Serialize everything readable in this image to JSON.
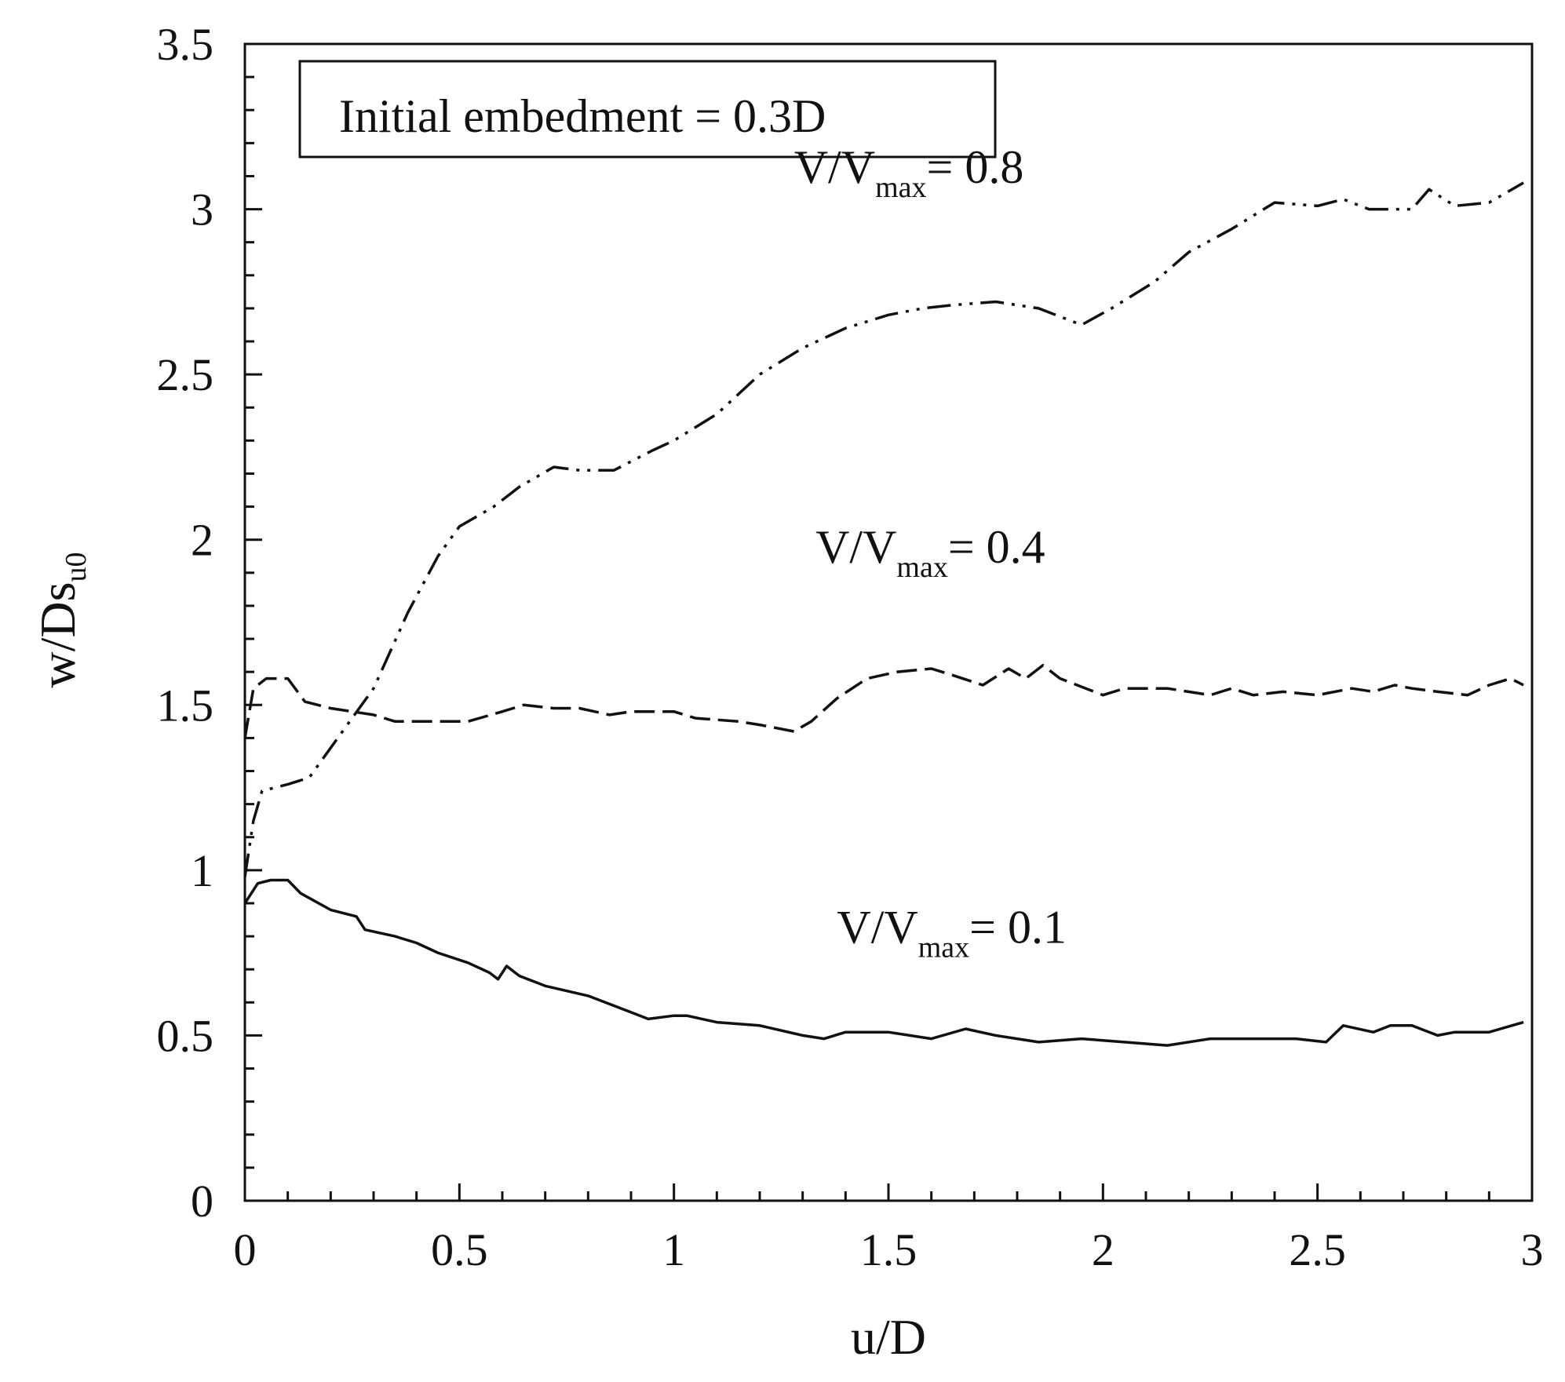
{
  "chart_data": {
    "type": "line",
    "title": "",
    "xlabel": "u/D",
    "ylabel_main": "w/Ds",
    "ylabel_sub": "u0",
    "xlim": [
      0,
      3
    ],
    "ylim": [
      0,
      3.5
    ],
    "x_ticks": [
      0,
      0.5,
      1,
      1.5,
      2,
      2.5,
      3
    ],
    "x_tick_labels": [
      "0",
      "0.5",
      "1",
      "1.5",
      "2",
      "2.5",
      "3"
    ],
    "y_ticks": [
      0,
      0.5,
      1,
      1.5,
      2,
      2.5,
      3,
      3.5
    ],
    "y_tick_labels": [
      "0",
      "0.5",
      "1",
      "1.5",
      "2",
      "2.5",
      "3",
      "3.5"
    ],
    "grid": false,
    "legend_box": "Initial embedment  = 0.3D",
    "series": [
      {
        "name": "V/Vmax = 0.1",
        "label_main": "V/V",
        "label_sub": "max",
        "label_value": "= 0.1",
        "label_at": [
          1.38,
          0.78
        ],
        "dash": "solid",
        "points": [
          [
            0,
            0.9
          ],
          [
            0.03,
            0.96
          ],
          [
            0.06,
            0.97
          ],
          [
            0.1,
            0.97
          ],
          [
            0.13,
            0.93
          ],
          [
            0.2,
            0.88
          ],
          [
            0.26,
            0.86
          ],
          [
            0.28,
            0.82
          ],
          [
            0.35,
            0.8
          ],
          [
            0.4,
            0.78
          ],
          [
            0.45,
            0.75
          ],
          [
            0.52,
            0.72
          ],
          [
            0.57,
            0.69
          ],
          [
            0.59,
            0.67
          ],
          [
            0.61,
            0.71
          ],
          [
            0.64,
            0.68
          ],
          [
            0.7,
            0.65
          ],
          [
            0.8,
            0.62
          ],
          [
            0.9,
            0.57
          ],
          [
            0.94,
            0.55
          ],
          [
            1.0,
            0.56
          ],
          [
            1.03,
            0.56
          ],
          [
            1.1,
            0.54
          ],
          [
            1.2,
            0.53
          ],
          [
            1.3,
            0.5
          ],
          [
            1.35,
            0.49
          ],
          [
            1.4,
            0.51
          ],
          [
            1.5,
            0.51
          ],
          [
            1.6,
            0.49
          ],
          [
            1.68,
            0.52
          ],
          [
            1.75,
            0.5
          ],
          [
            1.85,
            0.48
          ],
          [
            1.95,
            0.49
          ],
          [
            2.05,
            0.48
          ],
          [
            2.15,
            0.47
          ],
          [
            2.25,
            0.49
          ],
          [
            2.35,
            0.49
          ],
          [
            2.45,
            0.49
          ],
          [
            2.52,
            0.48
          ],
          [
            2.56,
            0.53
          ],
          [
            2.63,
            0.51
          ],
          [
            2.67,
            0.53
          ],
          [
            2.72,
            0.53
          ],
          [
            2.78,
            0.5
          ],
          [
            2.82,
            0.51
          ],
          [
            2.9,
            0.51
          ],
          [
            2.98,
            0.54
          ]
        ]
      },
      {
        "name": "V/Vmax = 0.4",
        "label_main": "V/V",
        "label_sub": "max",
        "label_value": "= 0.4",
        "label_at": [
          1.33,
          1.93
        ],
        "dash": "dashed",
        "points": [
          [
            0,
            1.4
          ],
          [
            0.02,
            1.55
          ],
          [
            0.05,
            1.58
          ],
          [
            0.1,
            1.58
          ],
          [
            0.14,
            1.51
          ],
          [
            0.2,
            1.49
          ],
          [
            0.3,
            1.47
          ],
          [
            0.35,
            1.45
          ],
          [
            0.45,
            1.45
          ],
          [
            0.52,
            1.45
          ],
          [
            0.6,
            1.48
          ],
          [
            0.65,
            1.5
          ],
          [
            0.72,
            1.49
          ],
          [
            0.78,
            1.49
          ],
          [
            0.85,
            1.47
          ],
          [
            0.9,
            1.48
          ],
          [
            1.0,
            1.48
          ],
          [
            1.05,
            1.46
          ],
          [
            1.15,
            1.45
          ],
          [
            1.2,
            1.44
          ],
          [
            1.28,
            1.42
          ],
          [
            1.32,
            1.45
          ],
          [
            1.38,
            1.52
          ],
          [
            1.45,
            1.58
          ],
          [
            1.52,
            1.6
          ],
          [
            1.6,
            1.61
          ],
          [
            1.65,
            1.59
          ],
          [
            1.72,
            1.56
          ],
          [
            1.78,
            1.61
          ],
          [
            1.82,
            1.58
          ],
          [
            1.86,
            1.62
          ],
          [
            1.9,
            1.58
          ],
          [
            2.0,
            1.53
          ],
          [
            2.05,
            1.55
          ],
          [
            2.15,
            1.55
          ],
          [
            2.25,
            1.53
          ],
          [
            2.3,
            1.55
          ],
          [
            2.35,
            1.53
          ],
          [
            2.42,
            1.54
          ],
          [
            2.5,
            1.53
          ],
          [
            2.58,
            1.55
          ],
          [
            2.63,
            1.54
          ],
          [
            2.68,
            1.56
          ],
          [
            2.72,
            1.55
          ],
          [
            2.78,
            1.54
          ],
          [
            2.85,
            1.53
          ],
          [
            2.9,
            1.56
          ],
          [
            2.95,
            1.58
          ],
          [
            2.98,
            1.56
          ]
        ]
      },
      {
        "name": "V/Vmax = 0.8",
        "label_main": "V/V",
        "label_sub": "max",
        "label_value": "= 0.8",
        "label_at": [
          1.28,
          3.08
        ],
        "dash": "dash-dot-dot",
        "points": [
          [
            0,
            0.98
          ],
          [
            0.02,
            1.15
          ],
          [
            0.04,
            1.24
          ],
          [
            0.1,
            1.26
          ],
          [
            0.15,
            1.28
          ],
          [
            0.2,
            1.37
          ],
          [
            0.3,
            1.55
          ],
          [
            0.38,
            1.78
          ],
          [
            0.45,
            1.95
          ],
          [
            0.5,
            2.04
          ],
          [
            0.58,
            2.1
          ],
          [
            0.64,
            2.16
          ],
          [
            0.72,
            2.22
          ],
          [
            0.78,
            2.21
          ],
          [
            0.86,
            2.21
          ],
          [
            0.95,
            2.27
          ],
          [
            1.0,
            2.3
          ],
          [
            1.1,
            2.38
          ],
          [
            1.2,
            2.5
          ],
          [
            1.3,
            2.58
          ],
          [
            1.4,
            2.64
          ],
          [
            1.5,
            2.68
          ],
          [
            1.58,
            2.7
          ],
          [
            1.65,
            2.71
          ],
          [
            1.75,
            2.72
          ],
          [
            1.85,
            2.7
          ],
          [
            1.95,
            2.65
          ],
          [
            2.02,
            2.7
          ],
          [
            2.12,
            2.78
          ],
          [
            2.2,
            2.87
          ],
          [
            2.3,
            2.94
          ],
          [
            2.4,
            3.02
          ],
          [
            2.5,
            3.01
          ],
          [
            2.56,
            3.03
          ],
          [
            2.62,
            3.0
          ],
          [
            2.72,
            3.0
          ],
          [
            2.76,
            3.06
          ],
          [
            2.82,
            3.01
          ],
          [
            2.9,
            3.02
          ],
          [
            2.98,
            3.08
          ]
        ]
      }
    ]
  }
}
